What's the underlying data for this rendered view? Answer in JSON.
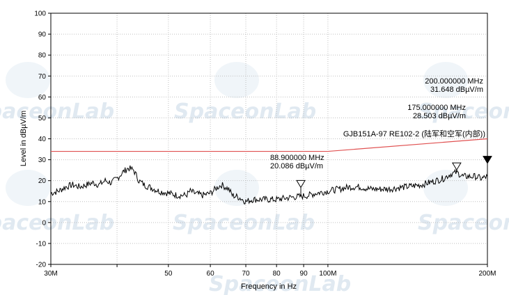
{
  "watermark": "SpaceonLab",
  "chart_data": {
    "type": "line",
    "xlabel": "Frequency in Hz",
    "ylabel": "Level in dBµV/m",
    "xscale": "log",
    "xlim_mhz": [
      30,
      200
    ],
    "ylim": [
      -20,
      100
    ],
    "y_ticks": [
      -20,
      -10,
      0,
      10,
      20,
      30,
      40,
      50,
      60,
      70,
      80,
      90,
      100
    ],
    "x_ticks": [
      {
        "mhz": 30,
        "label": "30M"
      },
      {
        "mhz": 40,
        "label": ""
      },
      {
        "mhz": 50,
        "label": "50"
      },
      {
        "mhz": 60,
        "label": "60"
      },
      {
        "mhz": 70,
        "label": "70"
      },
      {
        "mhz": 80,
        "label": "80"
      },
      {
        "mhz": 90,
        "label": "90"
      },
      {
        "mhz": 100,
        "label": "100M"
      },
      {
        "mhz": 200,
        "label": "200M"
      }
    ],
    "grid": true,
    "colors": {
      "trace": "#000000",
      "limit": "#e05050",
      "grid": "#bfbfbf"
    },
    "limit_line": {
      "name": "GJB151A-97 RE102-2 (陆军和空军(内部))",
      "x_mhz": [
        30,
        100,
        200
      ],
      "y": [
        34,
        34,
        40
      ]
    },
    "trace": {
      "x_mhz": [
        30,
        31,
        32,
        33,
        34,
        35,
        36,
        37,
        38,
        39,
        40,
        41,
        42,
        43,
        44,
        45,
        46,
        47,
        48,
        50,
        52,
        54,
        55,
        56,
        58,
        60,
        62,
        63,
        64,
        65,
        66,
        68,
        70,
        72,
        75,
        78,
        80,
        85,
        88.9,
        92,
        95,
        100,
        105,
        110,
        115,
        120,
        125,
        130,
        140,
        150,
        160,
        165,
        170,
        175,
        180,
        185,
        190,
        195,
        200
      ],
      "y": [
        14,
        15,
        17,
        18,
        17,
        18,
        19,
        18,
        20,
        19,
        21,
        24,
        26,
        25,
        20,
        18,
        17,
        16,
        15,
        14,
        13,
        13,
        15,
        14,
        13,
        14,
        17,
        18,
        17,
        16,
        13,
        12,
        10,
        11,
        11,
        11,
        11,
        12,
        12.5,
        13,
        14,
        15,
        16,
        17,
        17,
        16,
        16,
        16,
        17,
        18,
        20,
        21,
        23,
        24,
        22,
        22,
        22,
        21,
        22
      ]
    },
    "markers": [
      {
        "freq_label": "88.900000 MHz",
        "level_label": "20.086 dBµV/m",
        "x_mhz": 88.9,
        "y": 20.086,
        "filled": false
      },
      {
        "freq_label": "175.000000 MHz",
        "level_label": "28.503 dBµV/m",
        "x_mhz": 175,
        "y": 28.503,
        "filled": false
      },
      {
        "freq_label": "200.000000 MHz",
        "level_label": "31.648 dBµV/m",
        "x_mhz": 200,
        "y": 31.648,
        "filled": true
      }
    ]
  }
}
